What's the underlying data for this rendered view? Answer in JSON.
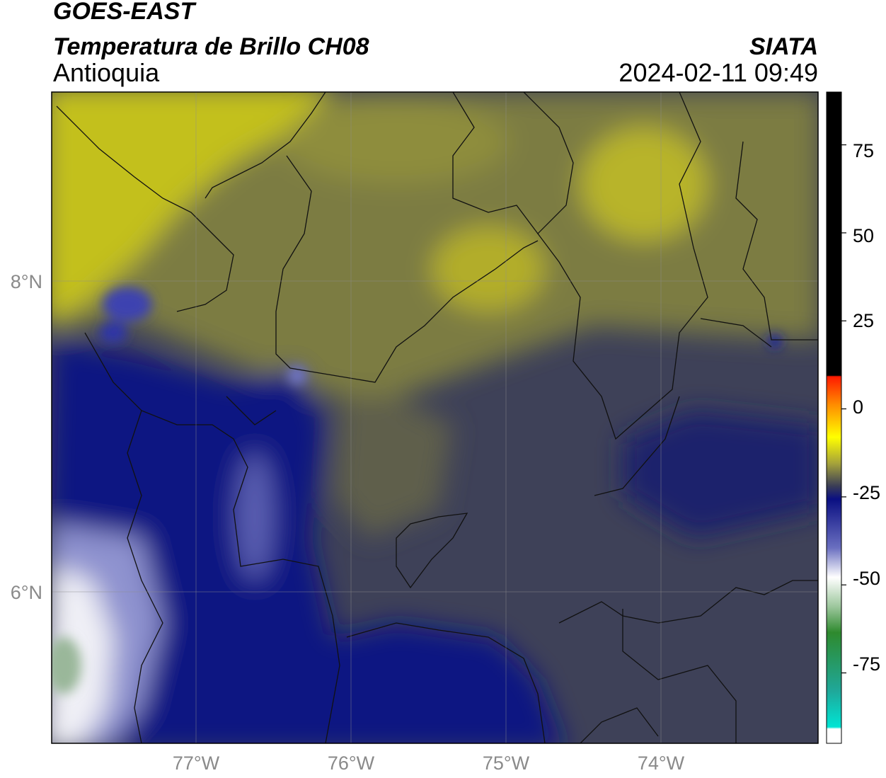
{
  "header": {
    "line1": "GOES-EAST",
    "line2": "Temperatura de Brillo CH08",
    "region": "Antioquia",
    "agency": "SIATA",
    "timestamp": "2024-02-11 09:49"
  },
  "map": {
    "x_ticks": [
      "77°W",
      "76°W",
      "75°W",
      "74°W"
    ],
    "y_ticks": [
      "8°N",
      "6°N"
    ],
    "grid": true
  },
  "colorbar": {
    "ticks": [
      "75",
      "50",
      "25",
      "0",
      "-25",
      "-50",
      "-75"
    ],
    "tick_values": [
      75,
      50,
      25,
      0,
      -25,
      -50,
      -75
    ],
    "range": [
      -95,
      90
    ],
    "palette": [
      {
        "stop": "dark",
        "color": "#000000"
      },
      {
        "stop": "red",
        "color": "#ff1a00"
      },
      {
        "stop": "orange",
        "color": "#ff8c00"
      },
      {
        "stop": "yellow",
        "color": "#ffff00"
      },
      {
        "stop": "olive",
        "color": "#7e7e3c"
      },
      {
        "stop": "slate",
        "color": "#3a3d56"
      },
      {
        "stop": "navy",
        "color": "#0a0f82"
      },
      {
        "stop": "periwinkle",
        "color": "#8c90cc"
      },
      {
        "stop": "white",
        "color": "#ffffff"
      },
      {
        "stop": "green",
        "color": "#2e8a2e"
      },
      {
        "stop": "cyan",
        "color": "#00e5d4"
      }
    ]
  },
  "field_colors": {
    "warm_yellow": "#c3c01f",
    "olive": "#8a8a3e",
    "olive_dark": "#6f7044",
    "slate": "#3e4158",
    "navy": "#0c1282",
    "light_blue": "#8e92cf",
    "white": "#f6f6f6"
  }
}
